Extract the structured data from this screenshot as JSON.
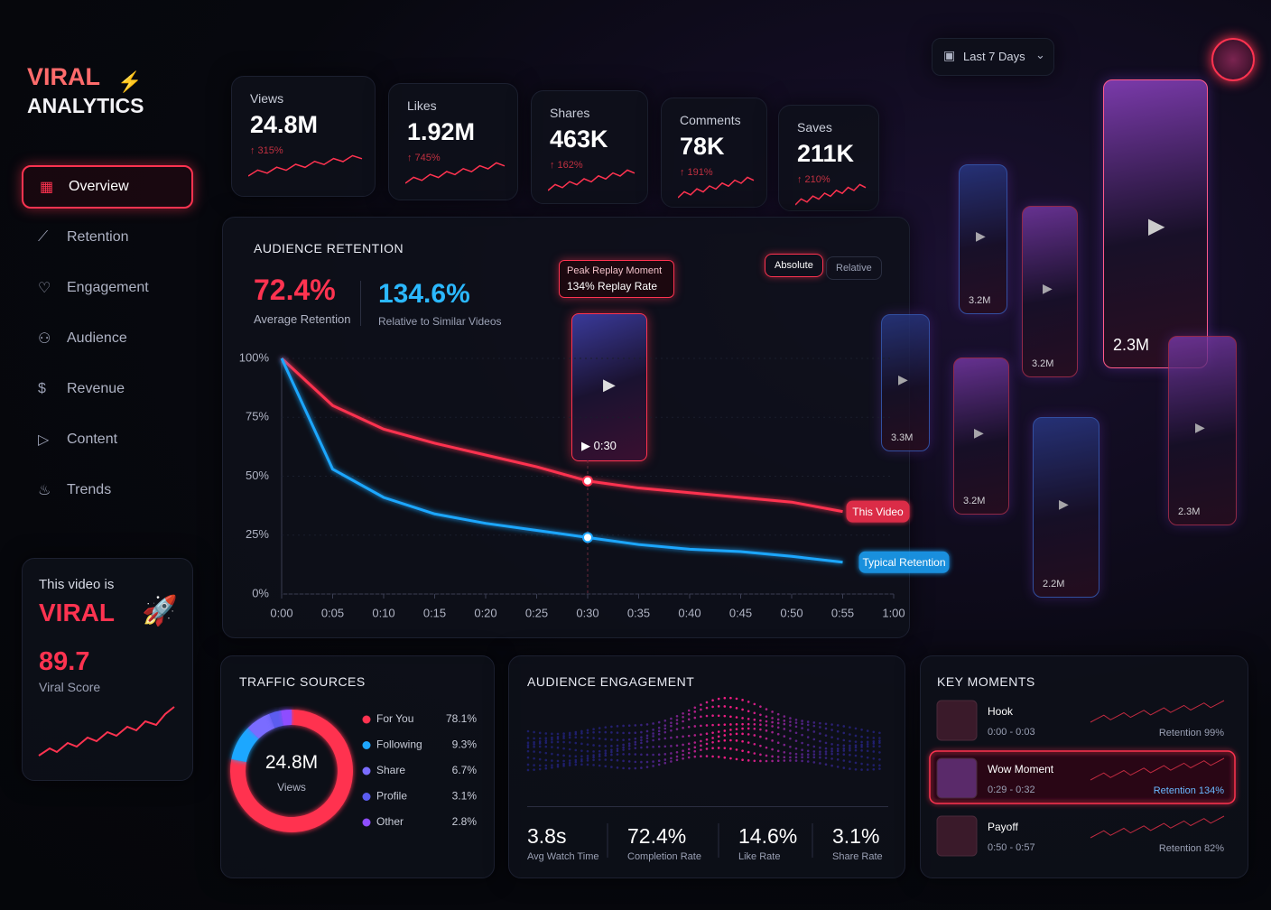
{
  "sidebar": {
    "brand_line1": "VIRAL",
    "brand_line2": "ANALYTICS",
    "nav": [
      "Overview",
      "Retention",
      "Engagement",
      "Audience",
      "Revenue",
      "Content",
      "Trends"
    ],
    "viral_card": {
      "caption": "This video is",
      "status": "VIRAL",
      "score": "89.7",
      "score_label": "Viral Score"
    }
  },
  "header": {
    "date_range": "Last 7 Days"
  },
  "kpis": [
    {
      "label": "Views",
      "value": "24.8M",
      "change": "↑ 315%"
    },
    {
      "label": "Likes",
      "value": "1.92M",
      "change": "↑ 745%"
    },
    {
      "label": "Shares",
      "value": "463K",
      "change": "↑ 162%"
    },
    {
      "label": "Comments",
      "value": "78K",
      "change": "↑ 191%"
    },
    {
      "label": "Saves",
      "value": "211K",
      "change": "↑ 210%"
    }
  ],
  "retention": {
    "title": "AUDIENCE RETENTION",
    "average": "72.4%",
    "average_label": "Average Retention",
    "relative": "134.6%",
    "relative_label": "Relative to Similar Videos",
    "toggle": [
      "Absolute",
      "Relative"
    ],
    "callout_title": "Peak Replay Moment",
    "callout_text": "134% Replay Rate",
    "thumb_time": "0:30",
    "chart": {
      "type": "line",
      "x": [
        "0:00",
        "0:05",
        "0:10",
        "0:15",
        "0:20",
        "0:25",
        "0:30",
        "0:35",
        "0:40",
        "0:45",
        "0:50",
        "0:55",
        "1:00"
      ],
      "ylim": [
        0,
        100
      ],
      "yticks": [
        {
          "value": 0,
          "label": "0%"
        },
        {
          "value": 25,
          "label": "25%"
        },
        {
          "value": 50,
          "label": "50%"
        },
        {
          "value": 75,
          "label": "75%"
        },
        {
          "value": 100,
          "label": "100%"
        }
      ],
      "series": [
        {
          "name": "This Video",
          "color": "#ff3350",
          "values": [
            100,
            80,
            70,
            64,
            59,
            54,
            48,
            45,
            43,
            41,
            39,
            35,
            null
          ]
        },
        {
          "name": "Typical Retention",
          "color": "#1ea7ff",
          "values": [
            100,
            53,
            41,
            34,
            30,
            27,
            24,
            21,
            19,
            18,
            16,
            13.5,
            null
          ]
        }
      ]
    }
  },
  "thumbnails": [
    "2.3M",
    "3.2M",
    "3.2M",
    "3.3M",
    "3.2M",
    "2.2M",
    "2.3M"
  ],
  "traffic": {
    "title": "TRAFFIC SOURCES",
    "center_value": "24.8M",
    "center_label": "Views",
    "chart": {
      "type": "pie",
      "categories": [
        "For You",
        "Following",
        "Share",
        "Profile",
        "Other"
      ],
      "values": [
        78.1,
        9.3,
        6.7,
        3.1,
        2.8
      ],
      "value_labels": [
        "78.1%",
        "9.3%",
        "6.7%",
        "3.1%",
        "2.8%"
      ],
      "colors": [
        "#ff3350",
        "#1ea7ff",
        "#7a6cff",
        "#5b5cf0",
        "#8e4dff"
      ]
    }
  },
  "engagement": {
    "title": "AUDIENCE ENGAGEMENT",
    "stats": [
      {
        "value": "3.8s",
        "label": "Avg Watch Time"
      },
      {
        "value": "72.4%",
        "label": "Completion Rate"
      },
      {
        "value": "14.6%",
        "label": "Like Rate"
      },
      {
        "value": "3.1%",
        "label": "Share Rate"
      }
    ]
  },
  "key_moments": {
    "title": "KEY MOMENTS",
    "items": [
      {
        "name": "Hook",
        "time": "0:00 - 0:03",
        "retention": "Retention 99%"
      },
      {
        "name": "Wow Moment",
        "time": "0:29 - 0:32",
        "retention": "Retention 134%"
      },
      {
        "name": "Payoff",
        "time": "0:50 - 0:57",
        "retention": "Retention 82%"
      }
    ]
  }
}
